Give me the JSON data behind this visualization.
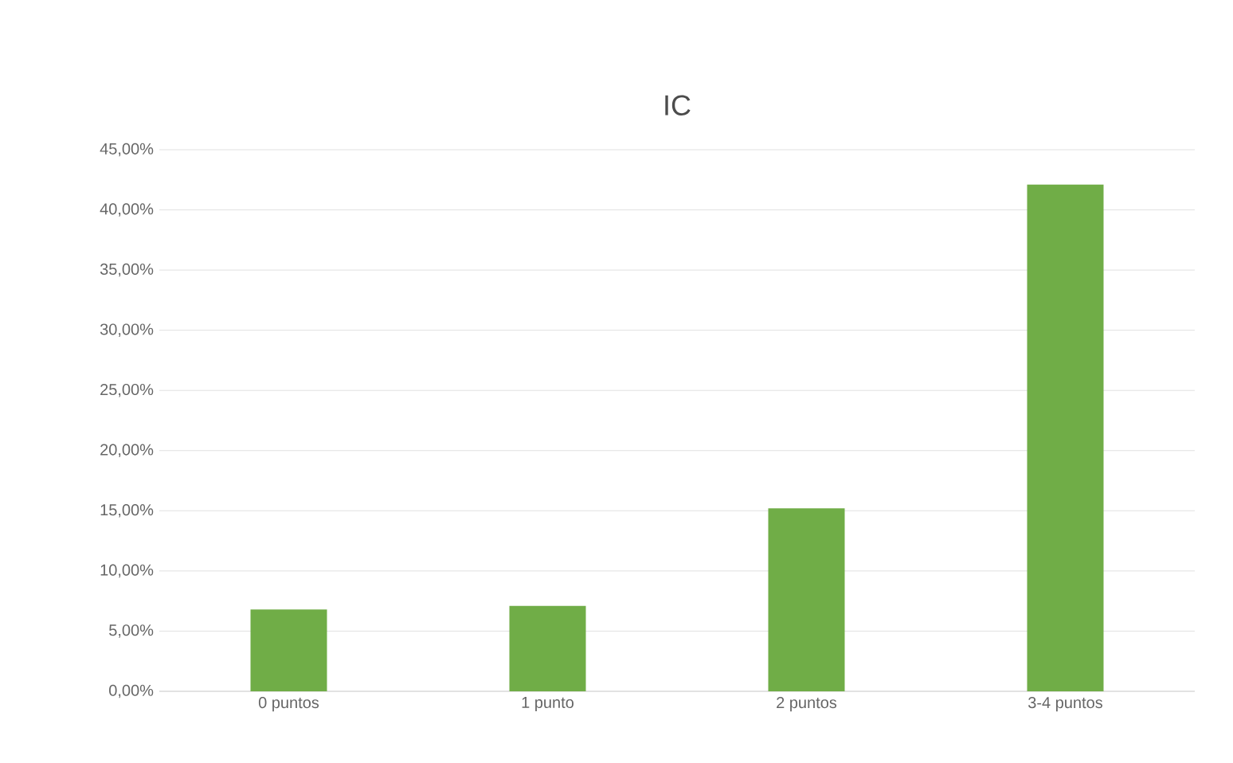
{
  "chart_data": {
    "type": "bar",
    "title": "IC",
    "categories": [
      "0 puntos",
      "1 punto",
      "2 puntos",
      "3-4 puntos"
    ],
    "values": [
      6.8,
      7.1,
      15.2,
      42.1
    ],
    "color": "#70ad47",
    "ylim": [
      0,
      45
    ],
    "yticks": [
      {
        "value": 0,
        "label": "0,00%"
      },
      {
        "value": 5,
        "label": "5,00%"
      },
      {
        "value": 10,
        "label": "10,00%"
      },
      {
        "value": 15,
        "label": "15,00%"
      },
      {
        "value": 20,
        "label": "20,00%"
      },
      {
        "value": 25,
        "label": "25,00%"
      },
      {
        "value": 30,
        "label": "30,00%"
      },
      {
        "value": 35,
        "label": "35,00%"
      },
      {
        "value": 40,
        "label": "40,00%"
      },
      {
        "value": 45,
        "label": "45,00%"
      }
    ],
    "grid": "y"
  }
}
